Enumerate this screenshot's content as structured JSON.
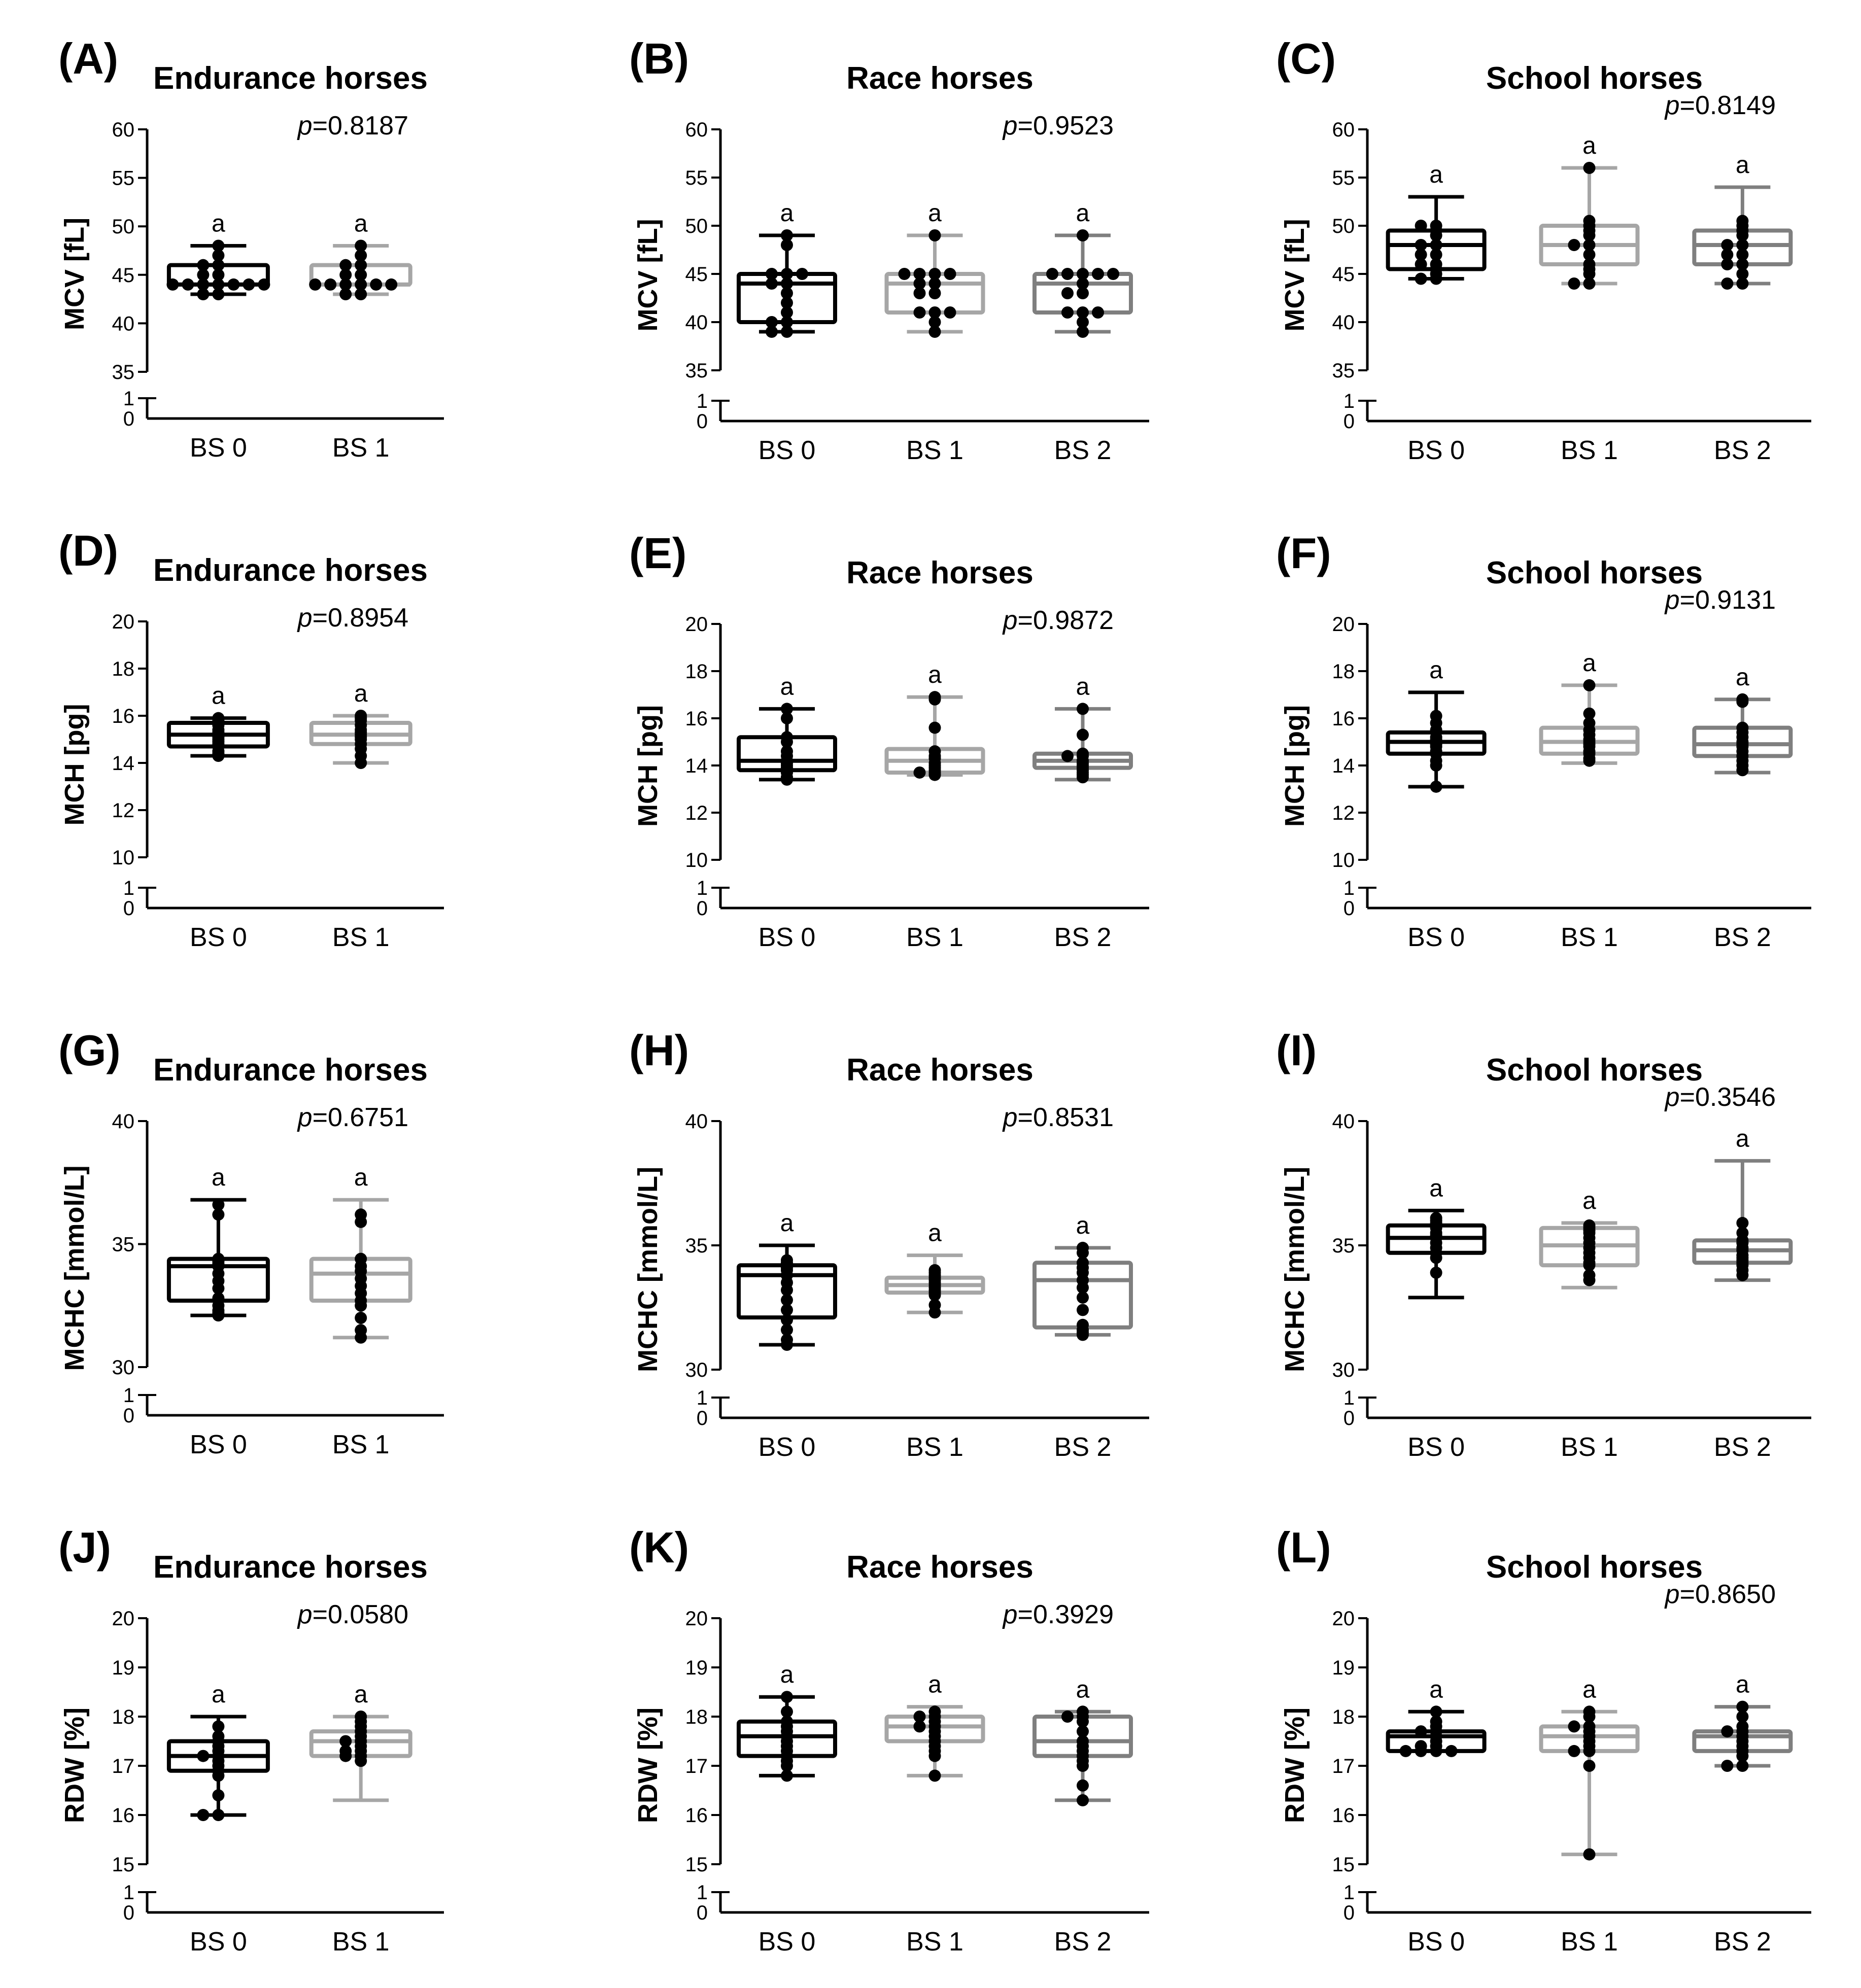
{
  "colors": {
    "BS 0": "#000000",
    "BS 1": "#a6a6a6",
    "BS 2": "#7f7f7f",
    "points": "#000000"
  },
  "chart_data": [
    {
      "type": "box",
      "panel": "(A)",
      "title": "Endurance horses",
      "ylabel": "MCV [fL]",
      "categories": [
        "BS 0",
        "BS 1"
      ],
      "ylim": [
        35,
        60
      ],
      "yticks": [
        35,
        40,
        45,
        50,
        55,
        60
      ],
      "break_ticks": [
        0,
        1
      ],
      "pvalue": "p=0.8187",
      "groups": [
        {
          "name": "BS 0",
          "min": 43,
          "q1": 44,
          "median": 44,
          "q3": 46,
          "max": 48,
          "points": [
            48,
            47,
            46,
            46,
            45,
            45,
            44,
            44,
            44,
            44,
            44,
            44,
            44,
            43,
            43
          ],
          "label": "a"
        },
        {
          "name": "BS 1",
          "min": 43,
          "q1": 44,
          "median": 44,
          "q3": 46,
          "max": 48,
          "points": [
            48,
            47,
            46,
            46,
            45,
            45,
            44,
            44,
            44,
            44,
            44,
            44,
            43,
            43
          ],
          "label": "a"
        }
      ]
    },
    {
      "type": "box",
      "panel": "(B)",
      "title": "Race horses",
      "ylabel": "MCV [fL]",
      "categories": [
        "BS 0",
        "BS 1",
        "BS 2"
      ],
      "ylim": [
        35,
        60
      ],
      "yticks": [
        35,
        40,
        45,
        50,
        55,
        60
      ],
      "break_ticks": [
        0,
        1
      ],
      "pvalue": "p=0.9523",
      "groups": [
        {
          "name": "BS 0",
          "min": 39,
          "q1": 40,
          "median": 44,
          "q3": 45,
          "max": 49,
          "points": [
            49,
            48,
            45,
            45,
            45,
            44,
            44,
            43,
            42,
            41,
            40,
            40,
            39,
            39
          ],
          "label": "a"
        },
        {
          "name": "BS 1",
          "min": 39,
          "q1": 41,
          "median": 44,
          "q3": 45,
          "max": 49,
          "points": [
            49,
            45,
            45,
            45,
            45,
            44,
            44,
            43,
            43,
            41,
            41,
            41,
            40,
            39
          ],
          "label": "a"
        },
        {
          "name": "BS 2",
          "min": 39,
          "q1": 41,
          "median": 44,
          "q3": 45,
          "max": 49,
          "points": [
            49,
            45,
            45,
            45,
            45,
            45,
            44,
            43,
            43,
            41,
            41,
            41,
            40,
            39
          ],
          "label": "a"
        }
      ]
    },
    {
      "type": "box",
      "panel": "(C)",
      "title": "School horses",
      "ylabel": "MCV [fL]",
      "categories": [
        "BS 0",
        "BS 1",
        "BS 2"
      ],
      "ylim": [
        35,
        60
      ],
      "yticks": [
        35,
        40,
        45,
        50,
        55,
        60
      ],
      "break_ticks": [
        0,
        1
      ],
      "pvalue": "p=0.8149",
      "groups": [
        {
          "name": "BS 0",
          "min": 44.5,
          "q1": 45.5,
          "median": 48,
          "q3": 49.5,
          "max": 53,
          "points": [
            50,
            50,
            49.5,
            49,
            48,
            48,
            47,
            47,
            46,
            46,
            45.5,
            45,
            44.5,
            44.5
          ],
          "label": "a"
        },
        {
          "name": "BS 1",
          "min": 44,
          "q1": 46,
          "median": 48,
          "q3": 50,
          "max": 56,
          "points": [
            56,
            50.5,
            50,
            49.5,
            49,
            48,
            48,
            47,
            46,
            45.5,
            45,
            44,
            44
          ],
          "label": "a"
        },
        {
          "name": "BS 2",
          "min": 44,
          "q1": 46,
          "median": 48,
          "q3": 49.5,
          "max": 54,
          "points": [
            50.5,
            50,
            49.5,
            49,
            48,
            48,
            47,
            47,
            46,
            46,
            45,
            44,
            44
          ],
          "label": "a"
        }
      ]
    },
    {
      "type": "box",
      "panel": "(D)",
      "title": "Endurance horses",
      "ylabel": "MCH [pg]",
      "categories": [
        "BS 0",
        "BS 1"
      ],
      "ylim": [
        10,
        20
      ],
      "yticks": [
        10,
        12,
        14,
        16,
        18,
        20
      ],
      "break_ticks": [
        0,
        1
      ],
      "pvalue": "p=0.8954",
      "groups": [
        {
          "name": "BS 0",
          "min": 14.3,
          "q1": 14.7,
          "median": 15.2,
          "q3": 15.7,
          "max": 15.9,
          "points": [
            15.9,
            15.8,
            15.7,
            15.6,
            15.4,
            15.3,
            15.2,
            15.1,
            15,
            14.9,
            14.8,
            14.7,
            14.5,
            14.4,
            14.3
          ],
          "label": "a"
        },
        {
          "name": "BS 1",
          "min": 14,
          "q1": 14.8,
          "median": 15.2,
          "q3": 15.7,
          "max": 16,
          "points": [
            16,
            15.9,
            15.8,
            15.6,
            15.4,
            15.3,
            15.2,
            15.1,
            15,
            14.8,
            14.6,
            14.3,
            14
          ],
          "label": "a"
        }
      ]
    },
    {
      "type": "box",
      "panel": "(E)",
      "title": "Race horses",
      "ylabel": "MCH [pg]",
      "categories": [
        "BS 0",
        "BS 1",
        "BS 2"
      ],
      "ylim": [
        10,
        20
      ],
      "yticks": [
        10,
        12,
        14,
        16,
        18,
        20
      ],
      "break_ticks": [
        0,
        1
      ],
      "pvalue": "p=0.9872",
      "groups": [
        {
          "name": "BS 0",
          "min": 13.4,
          "q1": 13.8,
          "median": 14.2,
          "q3": 15.2,
          "max": 16.4,
          "points": [
            16.4,
            16,
            15.2,
            15,
            14.6,
            14.4,
            14.2,
            14.1,
            14,
            13.9,
            13.8,
            13.7,
            13.5,
            13.4
          ],
          "label": "a"
        },
        {
          "name": "BS 1",
          "min": 13.6,
          "q1": 13.7,
          "median": 14.2,
          "q3": 14.7,
          "max": 16.9,
          "points": [
            16.9,
            16.8,
            15.6,
            14.6,
            14.4,
            14.3,
            14.1,
            14,
            13.9,
            13.8,
            13.7,
            13.7,
            13.6
          ],
          "label": "a"
        },
        {
          "name": "BS 2",
          "min": 13.4,
          "q1": 13.9,
          "median": 14.2,
          "q3": 14.5,
          "max": 16.4,
          "points": [
            16.4,
            15.3,
            14.5,
            14.4,
            14.4,
            14.2,
            14.1,
            14,
            13.9,
            13.8,
            13.7,
            13.6,
            13.5
          ],
          "label": "a"
        }
      ]
    },
    {
      "type": "box",
      "panel": "(F)",
      "title": "School horses",
      "ylabel": "MCH [pg]",
      "categories": [
        "BS 0",
        "BS 1",
        "BS 2"
      ],
      "ylim": [
        10,
        20
      ],
      "yticks": [
        10,
        12,
        14,
        16,
        18,
        20
      ],
      "break_ticks": [
        0,
        1
      ],
      "pvalue": "p=0.9131",
      "groups": [
        {
          "name": "BS 0",
          "min": 13.1,
          "q1": 14.5,
          "median": 15,
          "q3": 15.4,
          "max": 17.1,
          "points": [
            16.1,
            15.8,
            15.5,
            15.2,
            15.1,
            15,
            14.9,
            14.8,
            14.6,
            14.5,
            14.2,
            14,
            13.1
          ],
          "label": "a"
        },
        {
          "name": "BS 1",
          "min": 14.1,
          "q1": 14.5,
          "median": 15,
          "q3": 15.6,
          "max": 17.4,
          "points": [
            17.4,
            16.2,
            15.8,
            15.5,
            15.3,
            15.1,
            15,
            14.9,
            14.8,
            14.6,
            14.5,
            14.3,
            14.2
          ],
          "label": "a"
        },
        {
          "name": "BS 2",
          "min": 13.7,
          "q1": 14.4,
          "median": 14.9,
          "q3": 15.6,
          "max": 16.8,
          "points": [
            16.8,
            16.7,
            15.6,
            15.4,
            15.2,
            15,
            14.9,
            14.8,
            14.6,
            14.4,
            14.2,
            14,
            13.8
          ],
          "label": "a"
        }
      ]
    },
    {
      "type": "box",
      "panel": "(G)",
      "title": "Endurance horses",
      "ylabel": "MCHC [mmol/L]",
      "categories": [
        "BS 0",
        "BS 1"
      ],
      "ylim": [
        30,
        40
      ],
      "yticks": [
        30,
        35,
        40
      ],
      "break_ticks": [
        0,
        1
      ],
      "pvalue": "p=0.6751",
      "groups": [
        {
          "name": "BS 0",
          "min": 32.1,
          "q1": 32.7,
          "median": 34.1,
          "q3": 34.4,
          "max": 36.8,
          "points": [
            36.6,
            36.2,
            34.4,
            34.3,
            34.2,
            34.1,
            33.8,
            33.5,
            33.2,
            32.8,
            32.5,
            32.3,
            32.2,
            32.1
          ],
          "label": "a"
        },
        {
          "name": "BS 1",
          "min": 31.2,
          "q1": 32.7,
          "median": 33.8,
          "q3": 34.4,
          "max": 36.8,
          "points": [
            36.2,
            35.9,
            34.4,
            34.1,
            33.9,
            33.6,
            33.3,
            33,
            32.7,
            32.5,
            32,
            31.5,
            31.2
          ],
          "label": "a"
        }
      ]
    },
    {
      "type": "box",
      "panel": "(H)",
      "title": "Race horses",
      "ylabel": "MCHC [mmol/L]",
      "categories": [
        "BS 0",
        "BS 1",
        "BS 2"
      ],
      "ylim": [
        30,
        40
      ],
      "yticks": [
        30,
        35,
        40
      ],
      "break_ticks": [
        0,
        1
      ],
      "pvalue": "p=0.8531",
      "groups": [
        {
          "name": "BS 0",
          "min": 31,
          "q1": 32.1,
          "median": 33.8,
          "q3": 34.2,
          "max": 35,
          "points": [
            34.4,
            34.3,
            34.1,
            34,
            33.8,
            33.5,
            33.2,
            32.8,
            32.4,
            32,
            31.6,
            31.2,
            31
          ],
          "label": "a"
        },
        {
          "name": "BS 1",
          "min": 32.3,
          "q1": 33.1,
          "median": 33.4,
          "q3": 33.7,
          "max": 34.6,
          "points": [
            34,
            33.9,
            33.8,
            33.7,
            33.6,
            33.5,
            33.4,
            33.3,
            33.2,
            33.1,
            33,
            32.6,
            32.3
          ],
          "label": "a"
        },
        {
          "name": "BS 2",
          "min": 31.4,
          "q1": 31.7,
          "median": 33.6,
          "q3": 34.3,
          "max": 34.9,
          "points": [
            34.9,
            34.7,
            34.3,
            34.1,
            33.9,
            33.6,
            33.3,
            32.9,
            32.4,
            31.8,
            31.6,
            31.5,
            31.4
          ],
          "label": "a"
        }
      ]
    },
    {
      "type": "box",
      "panel": "(I)",
      "title": "School horses",
      "ylabel": "MCHC [mmol/L]",
      "categories": [
        "BS 0",
        "BS 1",
        "BS 2"
      ],
      "ylim": [
        30,
        40
      ],
      "yticks": [
        30,
        35,
        40
      ],
      "break_ticks": [
        0,
        1
      ],
      "pvalue": "p=0.3546",
      "groups": [
        {
          "name": "BS 0",
          "min": 32.9,
          "q1": 34.7,
          "median": 35.3,
          "q3": 35.8,
          "max": 36.4,
          "points": [
            36.1,
            36,
            35.9,
            35.7,
            35.5,
            35.4,
            35.3,
            35.1,
            34.9,
            34.7,
            34.5,
            33.9
          ],
          "label": "a"
        },
        {
          "name": "BS 1",
          "min": 33.3,
          "q1": 34.2,
          "median": 35,
          "q3": 35.7,
          "max": 35.9,
          "points": [
            35.8,
            35.7,
            35.6,
            35.5,
            35.3,
            35.1,
            34.9,
            34.7,
            34.5,
            34.3,
            34.2,
            33.8,
            33.6
          ],
          "label": "a"
        },
        {
          "name": "BS 2",
          "min": 33.6,
          "q1": 34.3,
          "median": 34.8,
          "q3": 35.2,
          "max": 38.4,
          "points": [
            35.9,
            35.5,
            35.2,
            35.1,
            34.9,
            34.8,
            34.6,
            34.5,
            34.4,
            34.3,
            34.2,
            34,
            33.8
          ],
          "label": "a"
        }
      ]
    },
    {
      "type": "box",
      "panel": "(J)",
      "title": "Endurance horses",
      "ylabel": "RDW [%]",
      "categories": [
        "BS 0",
        "BS 1"
      ],
      "ylim": [
        15,
        20
      ],
      "yticks": [
        15,
        16,
        17,
        18,
        19,
        20
      ],
      "break_ticks": [
        0,
        1
      ],
      "pvalue": "p=0.0580",
      "groups": [
        {
          "name": "BS 0",
          "min": 16,
          "q1": 16.9,
          "median": 17.2,
          "q3": 17.5,
          "max": 18,
          "points": [
            17.8,
            17.6,
            17.5,
            17.4,
            17.3,
            17.2,
            17.2,
            17.1,
            17,
            16.9,
            16.8,
            16.4,
            16,
            16
          ],
          "label": "a"
        },
        {
          "name": "BS 1",
          "min": 16.3,
          "q1": 17.2,
          "median": 17.5,
          "q3": 17.7,
          "max": 18,
          "points": [
            18,
            17.9,
            17.8,
            17.7,
            17.6,
            17.5,
            17.5,
            17.4,
            17.3,
            17.3,
            17.2,
            17.2,
            17.1
          ],
          "label": "a"
        }
      ]
    },
    {
      "type": "box",
      "panel": "(K)",
      "title": "Race horses",
      "ylabel": "RDW [%]",
      "categories": [
        "BS 0",
        "BS 1",
        "BS 2"
      ],
      "ylim": [
        15,
        20
      ],
      "yticks": [
        15,
        16,
        17,
        18,
        19,
        20
      ],
      "break_ticks": [
        0,
        1
      ],
      "pvalue": "p=0.3929",
      "groups": [
        {
          "name": "BS 0",
          "min": 16.8,
          "q1": 17.2,
          "median": 17.6,
          "q3": 17.9,
          "max": 18.4,
          "points": [
            18.4,
            18.1,
            17.9,
            17.8,
            17.7,
            17.6,
            17.5,
            17.4,
            17.3,
            17.2,
            17.1,
            17,
            16.8
          ],
          "label": "a"
        },
        {
          "name": "BS 1",
          "min": 16.8,
          "q1": 17.5,
          "median": 17.8,
          "q3": 18,
          "max": 18.2,
          "points": [
            18.1,
            18,
            18,
            17.9,
            17.8,
            17.8,
            17.7,
            17.6,
            17.5,
            17.4,
            17.3,
            17.2,
            16.8
          ],
          "label": "a"
        },
        {
          "name": "BS 2",
          "min": 16.3,
          "q1": 17.2,
          "median": 17.5,
          "q3": 18,
          "max": 18.1,
          "points": [
            18.1,
            18,
            18,
            17.9,
            17.7,
            17.5,
            17.4,
            17.3,
            17.2,
            17.1,
            17,
            16.6,
            16.3
          ],
          "label": "a"
        }
      ]
    },
    {
      "type": "box",
      "panel": "(L)",
      "title": "School horses",
      "ylabel": "RDW [%]",
      "categories": [
        "BS 0",
        "BS 1",
        "BS 2"
      ],
      "ylim": [
        15,
        20
      ],
      "yticks": [
        15,
        16,
        17,
        18,
        19,
        20
      ],
      "break_ticks": [
        0,
        1
      ],
      "pvalue": "p=0.8650",
      "groups": [
        {
          "name": "BS 0",
          "min": 17.3,
          "q1": 17.3,
          "median": 17.6,
          "q3": 17.7,
          "max": 18.1,
          "points": [
            18.1,
            17.9,
            17.8,
            17.7,
            17.7,
            17.6,
            17.5,
            17.4,
            17.4,
            17.3,
            17.3,
            17.3,
            17.3
          ],
          "label": "a"
        },
        {
          "name": "BS 1",
          "min": 15.2,
          "q1": 17.3,
          "median": 17.6,
          "q3": 17.8,
          "max": 18.1,
          "points": [
            18.1,
            18,
            17.8,
            17.8,
            17.7,
            17.6,
            17.5,
            17.4,
            17.3,
            17.3,
            17,
            15.2
          ],
          "label": "a"
        },
        {
          "name": "BS 2",
          "min": 17,
          "q1": 17.3,
          "median": 17.6,
          "q3": 17.7,
          "max": 18.2,
          "points": [
            18.2,
            18,
            17.8,
            17.7,
            17.7,
            17.6,
            17.5,
            17.4,
            17.3,
            17.2,
            17,
            17
          ],
          "label": "a"
        }
      ]
    }
  ]
}
